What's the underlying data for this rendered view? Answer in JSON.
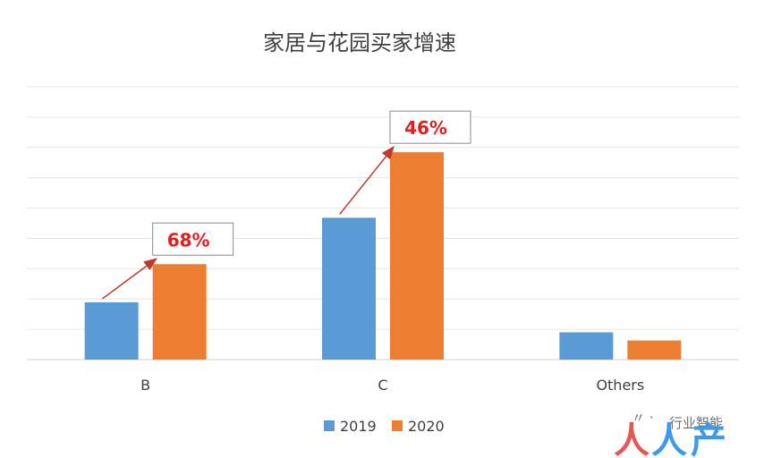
{
  "chart_data": {
    "type": "bar",
    "title": "家居与花园买家增速",
    "categories": [
      "B",
      "C",
      "Others"
    ],
    "series": [
      {
        "name": "2019",
        "values": [
          21,
          52,
          10
        ],
        "color": "#5b9bd5"
      },
      {
        "name": "2020",
        "values": [
          35,
          76,
          7
        ],
        "color": "#ed7d31"
      }
    ],
    "ylim": [
      0,
      100
    ],
    "grid": true,
    "legend_position": "bottom",
    "annotations": [
      {
        "category_index": 0,
        "text": "68%"
      },
      {
        "category_index": 1,
        "text": "46%"
      }
    ],
    "annotation_color": "#e02020"
  },
  "watermark": {
    "small_text": "行业智能",
    "logo_text": "人人都是产品经理"
  }
}
